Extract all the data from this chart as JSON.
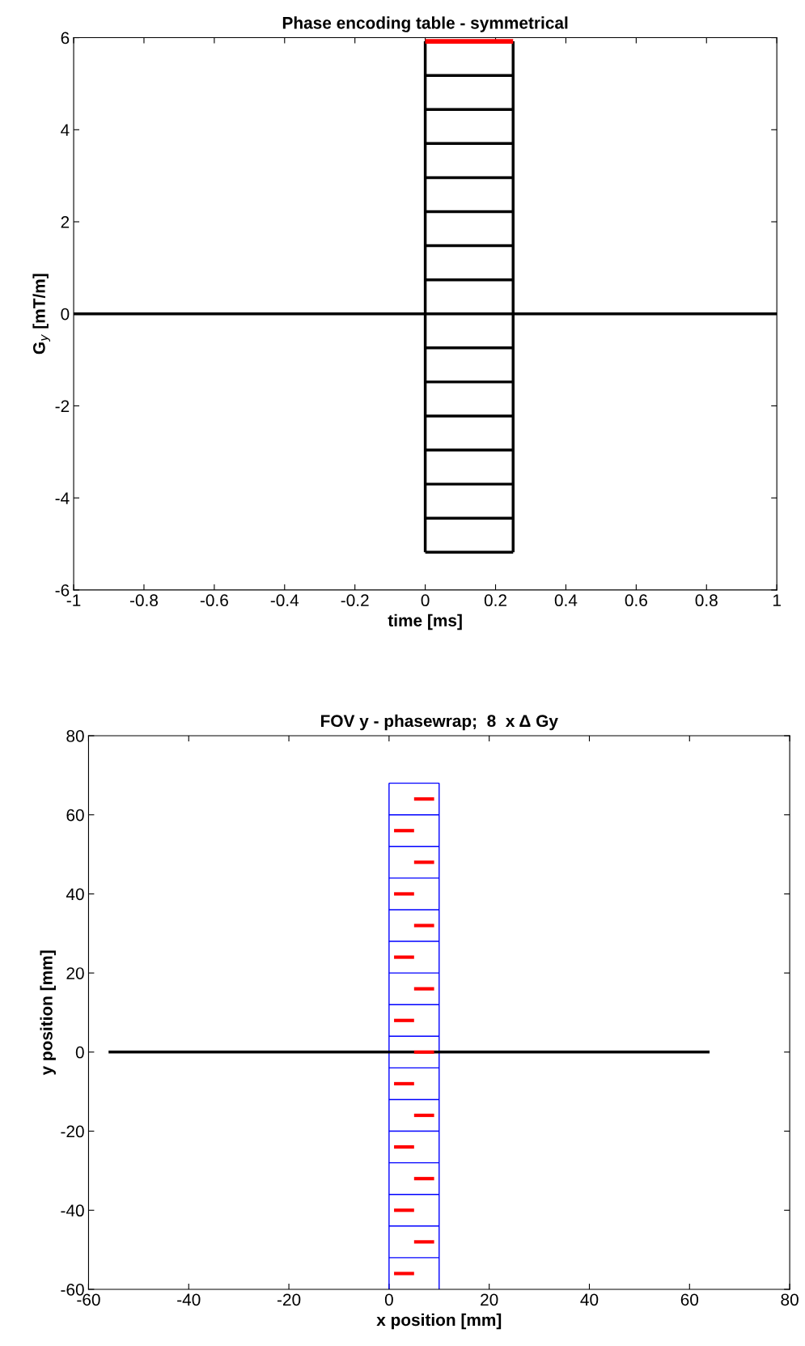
{
  "chart_data": [
    {
      "type": "line",
      "title": "Phase encoding table - symmetrical",
      "xlabel": "time [ms]",
      "ylabel": "G$_{y}$ [mT/m]",
      "xlim": [
        -1,
        1
      ],
      "ylim": [
        -6,
        6
      ],
      "xticks": [
        -1,
        -0.8,
        -0.6,
        -0.4,
        -0.2,
        0,
        0.2,
        0.4,
        0.6,
        0.8,
        1
      ],
      "yticks": [
        -6,
        -4,
        -2,
        0,
        2,
        4,
        6
      ],
      "grid": false,
      "marker": "none",
      "line_style": "solid",
      "series": [
        {
          "color": "#000000",
          "x": [
            -1,
            1
          ],
          "values": [
            0,
            0
          ]
        },
        {
          "color": "#000000",
          "x": [
            0,
            0
          ],
          "values": [
            -5.18,
            5.92
          ]
        },
        {
          "color": "#000000",
          "x": [
            0.25,
            0.25
          ],
          "values": [
            -5.18,
            5.92
          ]
        },
        {
          "color": "#000000",
          "x": [
            0,
            0.25
          ],
          "values": [
            -5.18,
            -5.18
          ]
        },
        {
          "color": "#000000",
          "x": [
            0,
            0.25
          ],
          "values": [
            -4.44,
            -4.44
          ]
        },
        {
          "color": "#000000",
          "x": [
            0,
            0.25
          ],
          "values": [
            -3.7,
            -3.7
          ]
        },
        {
          "color": "#000000",
          "x": [
            0,
            0.25
          ],
          "values": [
            -2.96,
            -2.96
          ]
        },
        {
          "color": "#000000",
          "x": [
            0,
            0.25
          ],
          "values": [
            -2.22,
            -2.22
          ]
        },
        {
          "color": "#000000",
          "x": [
            0,
            0.25
          ],
          "values": [
            -1.48,
            -1.48
          ]
        },
        {
          "color": "#000000",
          "x": [
            0,
            0.25
          ],
          "values": [
            -0.74,
            -0.74
          ]
        },
        {
          "color": "#000000",
          "x": [
            0,
            0.25
          ],
          "values": [
            0.74,
            0.74
          ]
        },
        {
          "color": "#000000",
          "x": [
            0,
            0.25
          ],
          "values": [
            1.48,
            1.48
          ]
        },
        {
          "color": "#000000",
          "x": [
            0,
            0.25
          ],
          "values": [
            2.22,
            2.22
          ]
        },
        {
          "color": "#000000",
          "x": [
            0,
            0.25
          ],
          "values": [
            2.96,
            2.96
          ]
        },
        {
          "color": "#000000",
          "x": [
            0,
            0.25
          ],
          "values": [
            3.7,
            3.7
          ]
        },
        {
          "color": "#000000",
          "x": [
            0,
            0.25
          ],
          "values": [
            4.44,
            4.44
          ]
        },
        {
          "color": "#000000",
          "x": [
            0,
            0.25
          ],
          "values": [
            5.18,
            5.18
          ]
        },
        {
          "color": "#ff0000",
          "x": [
            0,
            0.25
          ],
          "values": [
            5.92,
            5.92
          ]
        }
      ]
    },
    {
      "type": "line",
      "title": "FOV y - phasewrap;  8  x Δ Gy",
      "xlabel": "x position [mm]",
      "ylabel": "y position [mm]",
      "xlim": [
        -60,
        80
      ],
      "ylim": [
        -60,
        80
      ],
      "xticks": [
        -60,
        -40,
        -20,
        0,
        20,
        40,
        60,
        80
      ],
      "yticks": [
        -60,
        -40,
        -20,
        0,
        20,
        40,
        60,
        80
      ],
      "grid": false,
      "marker": "none",
      "line_style": "solid",
      "series": [
        {
          "color": "#0000ff",
          "x": [
            0,
            0
          ],
          "values": [
            -60,
            68
          ]
        },
        {
          "color": "#0000ff",
          "x": [
            10,
            10
          ],
          "values": [
            -60,
            68
          ]
        },
        {
          "color": "#0000ff",
          "x": [
            0,
            10
          ],
          "values": [
            68,
            68
          ]
        },
        {
          "color": "#0000ff",
          "x": [
            0,
            10
          ],
          "values": [
            60,
            60
          ]
        },
        {
          "color": "#0000ff",
          "x": [
            0,
            10
          ],
          "values": [
            52,
            52
          ]
        },
        {
          "color": "#0000ff",
          "x": [
            0,
            10
          ],
          "values": [
            44,
            44
          ]
        },
        {
          "color": "#0000ff",
          "x": [
            0,
            10
          ],
          "values": [
            36,
            36
          ]
        },
        {
          "color": "#0000ff",
          "x": [
            0,
            10
          ],
          "values": [
            28,
            28
          ]
        },
        {
          "color": "#0000ff",
          "x": [
            0,
            10
          ],
          "values": [
            20,
            20
          ]
        },
        {
          "color": "#0000ff",
          "x": [
            0,
            10
          ],
          "values": [
            12,
            12
          ]
        },
        {
          "color": "#0000ff",
          "x": [
            0,
            10
          ],
          "values": [
            4,
            4
          ]
        },
        {
          "color": "#0000ff",
          "x": [
            0,
            10
          ],
          "values": [
            -4,
            -4
          ]
        },
        {
          "color": "#0000ff",
          "x": [
            0,
            10
          ],
          "values": [
            -12,
            -12
          ]
        },
        {
          "color": "#0000ff",
          "x": [
            0,
            10
          ],
          "values": [
            -20,
            -20
          ]
        },
        {
          "color": "#0000ff",
          "x": [
            0,
            10
          ],
          "values": [
            -28,
            -28
          ]
        },
        {
          "color": "#0000ff",
          "x": [
            0,
            10
          ],
          "values": [
            -36,
            -36
          ]
        },
        {
          "color": "#0000ff",
          "x": [
            0,
            10
          ],
          "values": [
            -44,
            -44
          ]
        },
        {
          "color": "#0000ff",
          "x": [
            0,
            10
          ],
          "values": [
            -52,
            -52
          ]
        },
        {
          "color": "#000000",
          "x": [
            -56,
            64
          ],
          "values": [
            0,
            0
          ]
        },
        {
          "color": "#ff0000",
          "x": [
            5,
            9
          ],
          "values": [
            64,
            64
          ]
        },
        {
          "color": "#ff0000",
          "x": [
            1,
            5
          ],
          "values": [
            56,
            56
          ]
        },
        {
          "color": "#ff0000",
          "x": [
            5,
            9
          ],
          "values": [
            48,
            48
          ]
        },
        {
          "color": "#ff0000",
          "x": [
            1,
            5
          ],
          "values": [
            40,
            40
          ]
        },
        {
          "color": "#ff0000",
          "x": [
            5,
            9
          ],
          "values": [
            32,
            32
          ]
        },
        {
          "color": "#ff0000",
          "x": [
            1,
            5
          ],
          "values": [
            24,
            24
          ]
        },
        {
          "color": "#ff0000",
          "x": [
            5,
            9
          ],
          "values": [
            16,
            16
          ]
        },
        {
          "color": "#ff0000",
          "x": [
            1,
            5
          ],
          "values": [
            8,
            8
          ]
        },
        {
          "color": "#ff0000",
          "x": [
            5,
            9
          ],
          "values": [
            0,
            0
          ]
        },
        {
          "color": "#ff0000",
          "x": [
            1,
            5
          ],
          "values": [
            -8,
            -8
          ]
        },
        {
          "color": "#ff0000",
          "x": [
            5,
            9
          ],
          "values": [
            -16,
            -16
          ]
        },
        {
          "color": "#ff0000",
          "x": [
            1,
            5
          ],
          "values": [
            -24,
            -24
          ]
        },
        {
          "color": "#ff0000",
          "x": [
            5,
            9
          ],
          "values": [
            -32,
            -32
          ]
        },
        {
          "color": "#ff0000",
          "x": [
            1,
            5
          ],
          "values": [
            -40,
            -40
          ]
        },
        {
          "color": "#ff0000",
          "x": [
            5,
            9
          ],
          "values": [
            -48,
            -48
          ]
        },
        {
          "color": "#ff0000",
          "x": [
            1,
            5
          ],
          "values": [
            -56,
            -56
          ]
        }
      ]
    }
  ]
}
